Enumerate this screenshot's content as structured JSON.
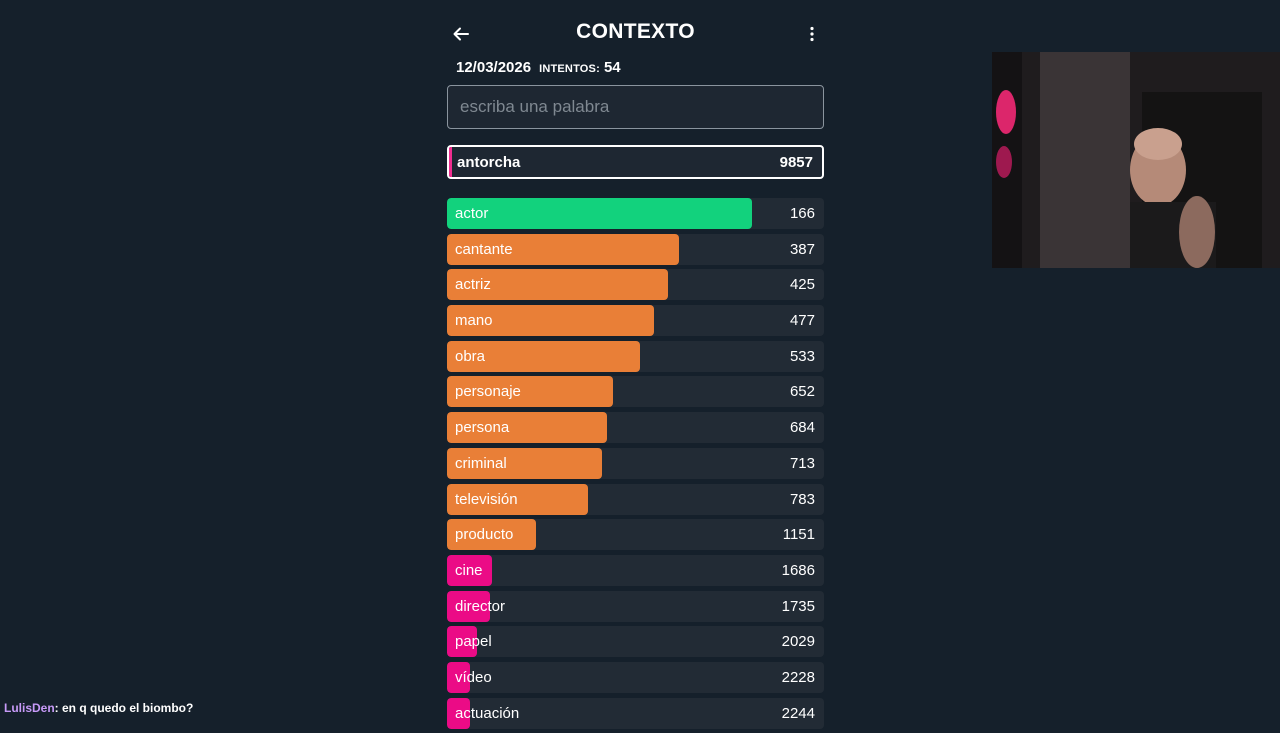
{
  "header": {
    "title": "CONTEXTO"
  },
  "stats": {
    "date": "12/03/2026",
    "attempts_label": "INTENTOS:",
    "attempts": "54"
  },
  "search": {
    "placeholder": "escriba una palabra",
    "value": ""
  },
  "current_guess": {
    "word": "antorcha",
    "rank": "9857"
  },
  "colors": {
    "green": "#12d27d",
    "orange": "#e97f37",
    "pink": "#eb0b86"
  },
  "guesses": [
    {
      "word": "actor",
      "rank": "166",
      "color": "#12d27d",
      "fill": 0.81
    },
    {
      "word": "cantante",
      "rank": "387",
      "color": "#e97f37",
      "fill": 0.615
    },
    {
      "word": "actriz",
      "rank": "425",
      "color": "#e97f37",
      "fill": 0.585
    },
    {
      "word": "mano",
      "rank": "477",
      "color": "#e97f37",
      "fill": 0.55
    },
    {
      "word": "obra",
      "rank": "533",
      "color": "#e97f37",
      "fill": 0.513
    },
    {
      "word": "personaje",
      "rank": "652",
      "color": "#e97f37",
      "fill": 0.44
    },
    {
      "word": "persona",
      "rank": "684",
      "color": "#e97f37",
      "fill": 0.425
    },
    {
      "word": "criminal",
      "rank": "713",
      "color": "#e97f37",
      "fill": 0.41
    },
    {
      "word": "televisión",
      "rank": "783",
      "color": "#e97f37",
      "fill": 0.375
    },
    {
      "word": "producto",
      "rank": "1151",
      "color": "#e97f37",
      "fill": 0.235
    },
    {
      "word": "cine",
      "rank": "1686",
      "color": "#eb0b86",
      "fill": 0.12
    },
    {
      "word": "director",
      "rank": "1735",
      "color": "#eb0b86",
      "fill": 0.115
    },
    {
      "word": "papel",
      "rank": "2029",
      "color": "#eb0b86",
      "fill": 0.08
    },
    {
      "word": "vídeo",
      "rank": "2228",
      "color": "#eb0b86",
      "fill": 0.06
    },
    {
      "word": "actuación",
      "rank": "2244",
      "color": "#eb0b86",
      "fill": 0.06
    }
  ],
  "chat": {
    "user": "LulisDen",
    "message": ": en q quedo el biombo?"
  }
}
